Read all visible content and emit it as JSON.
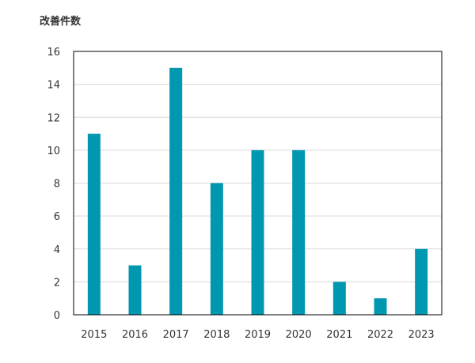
{
  "chart_data": {
    "type": "bar",
    "title": "",
    "ylabel": "改善件数",
    "xlabel": "",
    "categories": [
      "2015",
      "2016",
      "2017",
      "2018",
      "2019",
      "2020",
      "2021",
      "2022",
      "2023"
    ],
    "values": [
      11,
      3,
      15,
      8,
      10,
      10,
      2,
      1,
      4
    ],
    "ylim": [
      0,
      16
    ],
    "yticks": [
      0,
      2,
      4,
      6,
      8,
      10,
      12,
      14,
      16
    ],
    "grid": "horizontal",
    "legend": "none",
    "bar_color": "#0098B0"
  }
}
